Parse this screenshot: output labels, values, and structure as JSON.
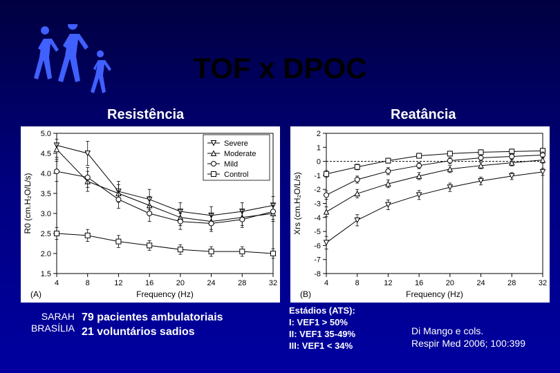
{
  "title": "TOF x DPOC",
  "subtitles": {
    "left": "Resistência",
    "right": "Reatância"
  },
  "logo": {
    "color": "#4060ff",
    "description": "walking-figures-silhouette"
  },
  "chartA": {
    "type": "line",
    "panel_label": "(A)",
    "xlabel": "Frequency (Hz)",
    "ylabel": "R0 (cm.H₂O/L/s)",
    "xlim": [
      4,
      32
    ],
    "xtick_step": 4,
    "ylim": [
      1.5,
      5.0
    ],
    "ytick_step": 0.5,
    "background": "#ffffff",
    "axis_color": "#000000",
    "label_fontsize": 12,
    "tick_fontsize": 11,
    "legend": {
      "position": "top-right-inside",
      "items": [
        {
          "label": "Severe",
          "marker": "triangle-down",
          "color": "#000000"
        },
        {
          "label": "Moderate",
          "marker": "triangle-up",
          "color": "#000000"
        },
        {
          "label": "Mild",
          "marker": "circle",
          "color": "#000000"
        },
        {
          "label": "Control",
          "marker": "square",
          "color": "#000000"
        }
      ]
    },
    "series": [
      {
        "name": "Severe",
        "marker": "triangle-down",
        "color": "#000000",
        "line_width": 1,
        "x": [
          4,
          8,
          12,
          16,
          20,
          24,
          28,
          32
        ],
        "y": [
          4.7,
          4.5,
          3.55,
          3.35,
          3.05,
          2.95,
          3.05,
          3.2
        ],
        "err": [
          0.3,
          0.3,
          0.25,
          0.25,
          0.22,
          0.22,
          0.22,
          0.22
        ]
      },
      {
        "name": "Moderate",
        "marker": "triangle-up",
        "color": "#000000",
        "line_width": 1,
        "x": [
          4,
          8,
          12,
          16,
          20,
          24,
          28,
          32
        ],
        "y": [
          4.6,
          3.8,
          3.5,
          3.2,
          2.9,
          2.8,
          2.9,
          3.0
        ],
        "err": [
          0.25,
          0.25,
          0.22,
          0.22,
          0.2,
          0.2,
          0.2,
          0.2
        ]
      },
      {
        "name": "Mild",
        "marker": "circle",
        "color": "#000000",
        "line_width": 1,
        "x": [
          4,
          8,
          12,
          16,
          20,
          24,
          28,
          32
        ],
        "y": [
          4.05,
          3.9,
          3.35,
          3.0,
          2.8,
          2.75,
          2.85,
          3.05
        ],
        "err": [
          0.25,
          0.25,
          0.22,
          0.2,
          0.2,
          0.2,
          0.2,
          0.2
        ]
      },
      {
        "name": "Control",
        "marker": "square",
        "color": "#000000",
        "line_width": 1,
        "x": [
          4,
          8,
          12,
          16,
          20,
          24,
          28,
          32
        ],
        "y": [
          2.5,
          2.45,
          2.3,
          2.2,
          2.1,
          2.05,
          2.05,
          2.0
        ],
        "err": [
          0.15,
          0.15,
          0.15,
          0.12,
          0.12,
          0.12,
          0.12,
          0.12
        ]
      }
    ]
  },
  "chartB": {
    "type": "line",
    "panel_label": "(B)",
    "xlabel": "Frequency (Hz)",
    "ylabel": "Xrs (cm.H₂O/L/s)",
    "xlim": [
      4,
      32
    ],
    "xtick_step": 4,
    "ylim": [
      -8,
      2
    ],
    "ytick_step": 1,
    "background": "#ffffff",
    "axis_color": "#000000",
    "label_fontsize": 12,
    "tick_fontsize": 11,
    "zero_line": {
      "dash": "3,2",
      "color": "#000000"
    },
    "series": [
      {
        "name": "Control",
        "marker": "square",
        "color": "#000000",
        "line_width": 1,
        "x": [
          4,
          8,
          12,
          16,
          20,
          24,
          28,
          32
        ],
        "y": [
          -0.9,
          -0.4,
          0.05,
          0.4,
          0.55,
          0.65,
          0.7,
          0.75
        ],
        "err": [
          0.25,
          0.2,
          0.18,
          0.18,
          0.18,
          0.18,
          0.18,
          0.18
        ]
      },
      {
        "name": "Mild",
        "marker": "circle",
        "color": "#000000",
        "line_width": 1,
        "x": [
          4,
          8,
          12,
          16,
          20,
          24,
          28,
          32
        ],
        "y": [
          -2.4,
          -1.3,
          -0.7,
          -0.3,
          0.05,
          0.25,
          0.35,
          0.45
        ],
        "err": [
          0.3,
          0.25,
          0.25,
          0.22,
          0.22,
          0.22,
          0.22,
          0.22
        ]
      },
      {
        "name": "Moderate",
        "marker": "triangle-up",
        "color": "#000000",
        "line_width": 1,
        "x": [
          4,
          8,
          12,
          16,
          20,
          24,
          28,
          32
        ],
        "y": [
          -3.6,
          -2.3,
          -1.6,
          -1.05,
          -0.55,
          -0.3,
          -0.1,
          0.1
        ],
        "err": [
          0.35,
          0.3,
          0.28,
          0.25,
          0.25,
          0.22,
          0.22,
          0.22
        ]
      },
      {
        "name": "Severe",
        "marker": "triangle-down",
        "color": "#000000",
        "line_width": 1,
        "x": [
          4,
          8,
          12,
          16,
          20,
          24,
          28,
          32
        ],
        "y": [
          -5.8,
          -4.2,
          -3.1,
          -2.4,
          -1.85,
          -1.4,
          -1.05,
          -0.75
        ],
        "err": [
          0.45,
          0.4,
          0.35,
          0.32,
          0.3,
          0.28,
          0.25,
          0.25
        ]
      }
    ]
  },
  "footer": {
    "sarah_l1": "SARAH",
    "sarah_l2": "BRASÍLIA",
    "sample_l1": "79 pacientes ambulatoriais",
    "sample_l2": "21 voluntários sadios",
    "stages_title": "Estádios (ATS):",
    "stages_l1": "I: VEF1 > 50%",
    "stages_l2": "II: VEF1 35-49%",
    "stages_l3": "III: VEF1 < 34%",
    "cite_l1": "Di Mango e cols.",
    "cite_l2": "Respir Med 2006; 100:399"
  }
}
